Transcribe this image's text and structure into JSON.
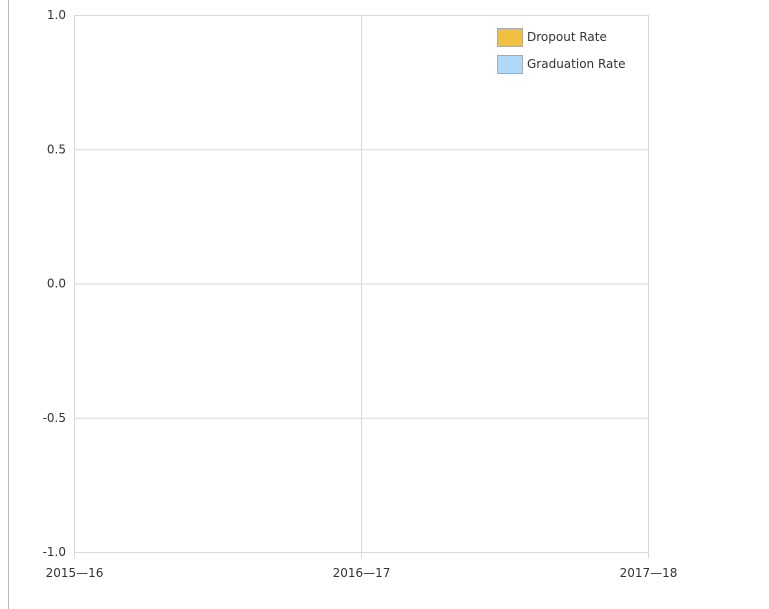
{
  "chart_data": {
    "type": "line",
    "categories": [
      "2015—16",
      "2016—17",
      "2017—18"
    ],
    "series": [
      {
        "name": "Dropout Rate",
        "color": "#f0c040",
        "values": [
          null,
          null,
          null
        ]
      },
      {
        "name": "Graduation Rate",
        "color": "#b0d8f8",
        "values": [
          null,
          null,
          null
        ]
      }
    ],
    "ylim": [
      -1,
      1
    ],
    "yticks": [
      {
        "value": -1,
        "label": "-1.0"
      },
      -0.5,
      {
        "value": 0,
        "label": "0.0"
      },
      0.5,
      {
        "value": 1,
        "label": "1.0"
      }
    ],
    "grid": true,
    "legend": "top-right"
  }
}
